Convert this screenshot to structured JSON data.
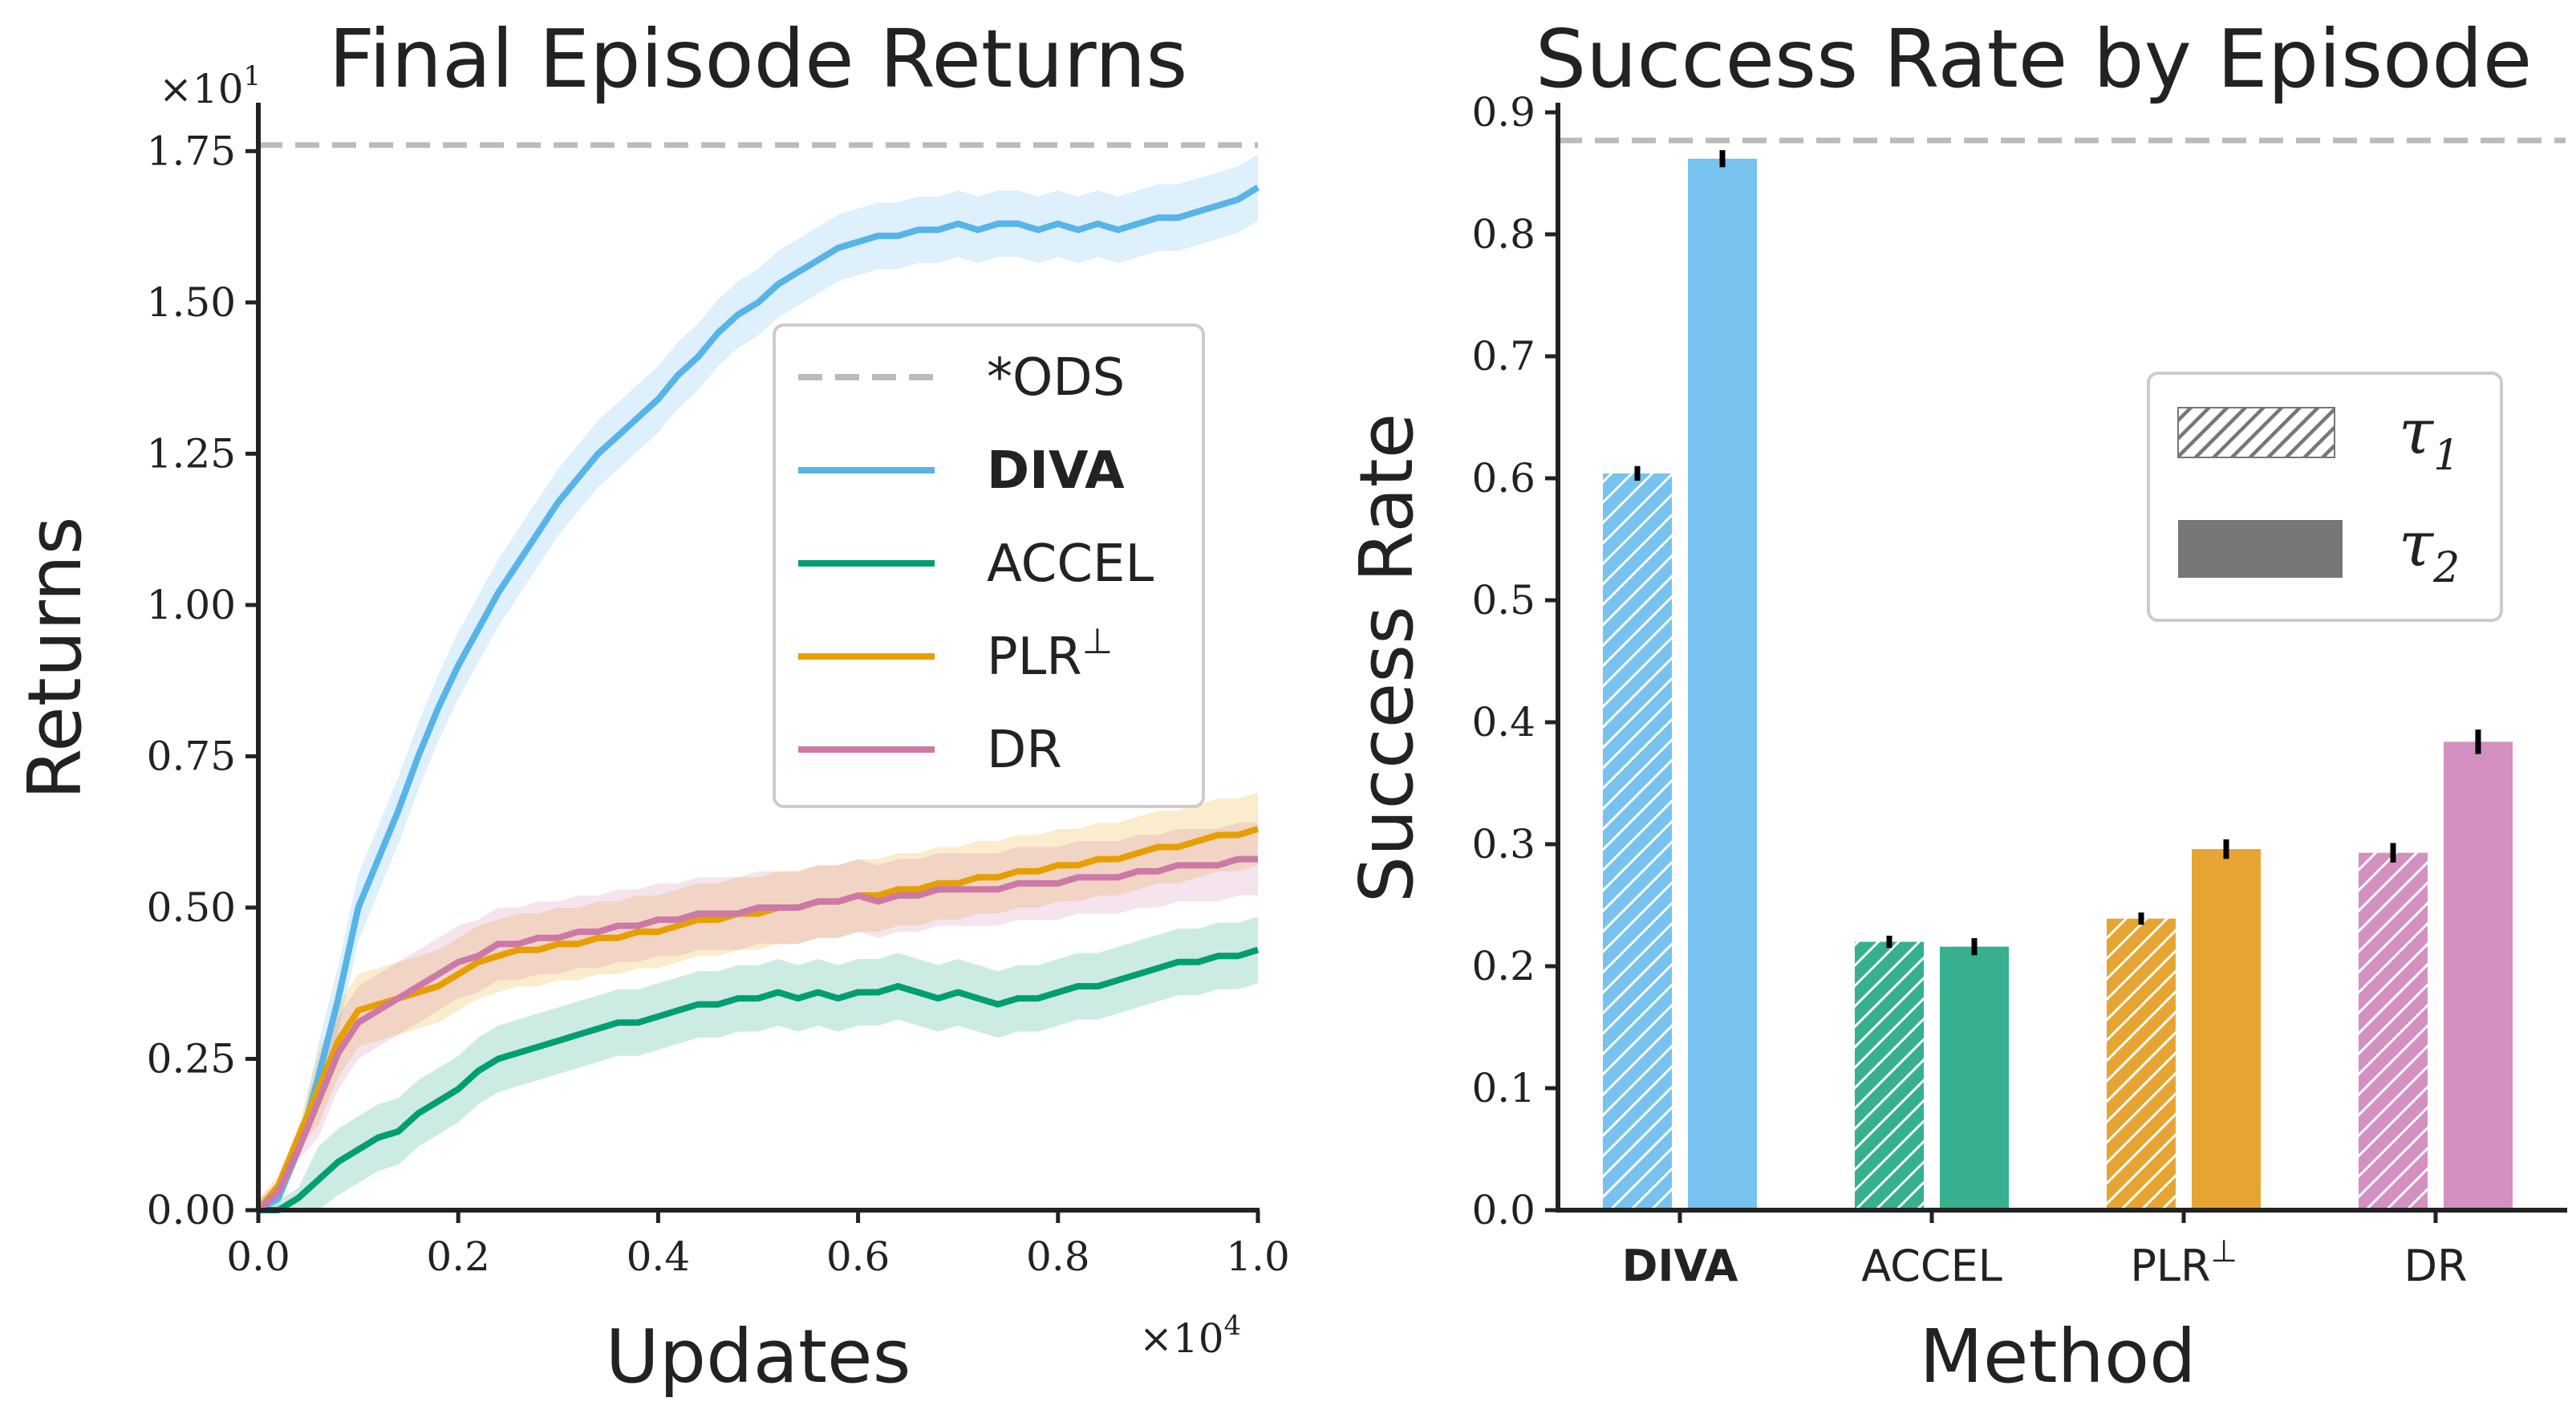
{
  "chart_data": [
    {
      "type": "line",
      "title": "Final Episode Returns",
      "xlabel": "Updates",
      "ylabel": "Returns",
      "x_multiplier": "×10",
      "x_multiplier_exp": "4",
      "y_multiplier": "×10",
      "y_multiplier_exp": "1",
      "xlim": [
        0,
        1.0
      ],
      "ylim": [
        0,
        1.83
      ],
      "xticks": [
        "0.0",
        "0.2",
        "0.4",
        "0.6",
        "0.8",
        "1.0"
      ],
      "yticks": [
        "0.00",
        "0.25",
        "0.50",
        "0.75",
        "1.00",
        "1.25",
        "1.50",
        "1.75"
      ],
      "legend_position": "center-right",
      "reference": {
        "name": "*ODS",
        "value": 1.76,
        "color": "#bbbbbb"
      },
      "x": [
        0.0,
        0.02,
        0.04,
        0.06,
        0.08,
        0.1,
        0.12,
        0.14,
        0.16,
        0.18,
        0.2,
        0.22,
        0.24,
        0.26,
        0.28,
        0.3,
        0.32,
        0.34,
        0.36,
        0.38,
        0.4,
        0.42,
        0.44,
        0.46,
        0.48,
        0.5,
        0.52,
        0.54,
        0.56,
        0.58,
        0.6,
        0.62,
        0.64,
        0.66,
        0.68,
        0.7,
        0.72,
        0.74,
        0.76,
        0.78,
        0.8,
        0.82,
        0.84,
        0.86,
        0.88,
        0.9,
        0.92,
        0.94,
        0.96,
        0.98,
        1.0
      ],
      "series": [
        {
          "name": "DIVA",
          "bold": true,
          "color": "#56B4E9",
          "band": 0.055,
          "values": [
            0.0,
            0.02,
            0.1,
            0.22,
            0.35,
            0.5,
            0.58,
            0.66,
            0.75,
            0.83,
            0.9,
            0.96,
            1.02,
            1.07,
            1.12,
            1.17,
            1.21,
            1.25,
            1.28,
            1.31,
            1.34,
            1.38,
            1.41,
            1.45,
            1.48,
            1.5,
            1.53,
            1.55,
            1.57,
            1.59,
            1.6,
            1.61,
            1.61,
            1.62,
            1.62,
            1.63,
            1.62,
            1.63,
            1.63,
            1.62,
            1.63,
            1.62,
            1.63,
            1.62,
            1.63,
            1.64,
            1.64,
            1.65,
            1.66,
            1.67,
            1.69
          ]
        },
        {
          "name": "ACCEL",
          "bold": false,
          "color": "#009E73",
          "band": 0.055,
          "values": [
            0.0,
            0.0,
            0.02,
            0.05,
            0.08,
            0.1,
            0.12,
            0.13,
            0.16,
            0.18,
            0.2,
            0.23,
            0.25,
            0.26,
            0.27,
            0.28,
            0.29,
            0.3,
            0.31,
            0.31,
            0.32,
            0.33,
            0.34,
            0.34,
            0.35,
            0.35,
            0.36,
            0.35,
            0.36,
            0.35,
            0.36,
            0.36,
            0.37,
            0.36,
            0.35,
            0.36,
            0.35,
            0.34,
            0.35,
            0.35,
            0.36,
            0.37,
            0.37,
            0.38,
            0.39,
            0.4,
            0.41,
            0.41,
            0.42,
            0.42,
            0.43
          ]
        },
        {
          "name": "PLR",
          "sup": "⊥",
          "bold": false,
          "color": "#E69F00",
          "band": 0.06,
          "values": [
            0.0,
            0.04,
            0.12,
            0.2,
            0.28,
            0.33,
            0.34,
            0.35,
            0.36,
            0.37,
            0.39,
            0.41,
            0.42,
            0.43,
            0.43,
            0.44,
            0.44,
            0.45,
            0.45,
            0.46,
            0.46,
            0.47,
            0.48,
            0.48,
            0.49,
            0.49,
            0.5,
            0.5,
            0.51,
            0.51,
            0.52,
            0.52,
            0.53,
            0.53,
            0.54,
            0.54,
            0.55,
            0.55,
            0.56,
            0.56,
            0.57,
            0.57,
            0.58,
            0.58,
            0.59,
            0.6,
            0.6,
            0.61,
            0.62,
            0.62,
            0.63
          ]
        },
        {
          "name": "DR",
          "bold": false,
          "color": "#CC79A7",
          "band": 0.06,
          "values": [
            0.0,
            0.03,
            0.1,
            0.18,
            0.26,
            0.31,
            0.33,
            0.35,
            0.37,
            0.39,
            0.41,
            0.42,
            0.44,
            0.44,
            0.45,
            0.45,
            0.46,
            0.46,
            0.47,
            0.47,
            0.48,
            0.48,
            0.49,
            0.49,
            0.49,
            0.5,
            0.5,
            0.5,
            0.51,
            0.51,
            0.52,
            0.51,
            0.52,
            0.52,
            0.53,
            0.53,
            0.53,
            0.53,
            0.54,
            0.54,
            0.54,
            0.55,
            0.55,
            0.55,
            0.56,
            0.56,
            0.57,
            0.57,
            0.57,
            0.58,
            0.58
          ]
        }
      ]
    },
    {
      "type": "bar",
      "title": "Success Rate by Episode",
      "xlabel": "Method",
      "ylabel": "Success Rate",
      "ylim": [
        0,
        0.9
      ],
      "yticks": [
        "0.0",
        "0.1",
        "0.2",
        "0.3",
        "0.4",
        "0.5",
        "0.6",
        "0.7",
        "0.8",
        "0.9"
      ],
      "legend_position": "right",
      "reference": {
        "value": 0.877,
        "color": "#bbbbbb"
      },
      "categories": [
        {
          "label": "DIVA",
          "bold": true,
          "color": "#56B4E9",
          "fill": "#77C2EE"
        },
        {
          "label": "ACCEL",
          "bold": false,
          "color": "#009E73",
          "fill": "#36B08E"
        },
        {
          "label": "PLR",
          "sup": "⊥",
          "bold": false,
          "color": "#E69F00",
          "fill": "#E6A533"
        },
        {
          "label": "DR",
          "bold": false,
          "color": "#CC79A7",
          "fill": "#D390C0"
        }
      ],
      "series": [
        {
          "name": "τ",
          "sub": "1",
          "hatched": true,
          "values": [
            0.604,
            0.22,
            0.239,
            0.293
          ],
          "errors": [
            0.006,
            0.005,
            0.005,
            0.008
          ]
        },
        {
          "name": "τ",
          "sub": "2",
          "hatched": false,
          "values": [
            0.862,
            0.216,
            0.296,
            0.384
          ],
          "errors": [
            0.007,
            0.007,
            0.008,
            0.01
          ]
        }
      ]
    }
  ]
}
